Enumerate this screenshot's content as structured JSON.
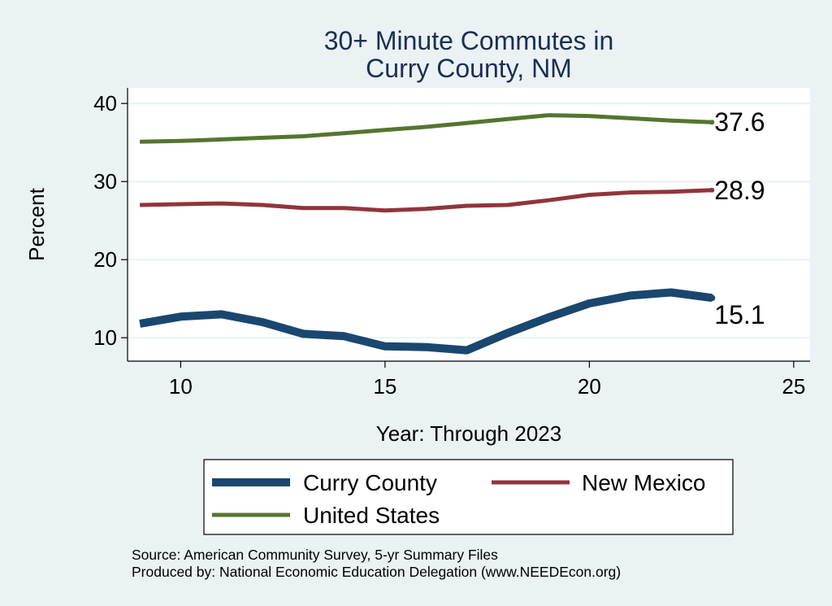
{
  "chart_data": {
    "type": "line",
    "title": [
      "30+ Minute Commutes in",
      "Curry County, NM"
    ],
    "xlabel": "Year: Through 2023",
    "ylabel": "Percent",
    "xlim": [
      8.7,
      25.4
    ],
    "ylim": [
      7,
      42
    ],
    "xticks": [
      10,
      15,
      20,
      25
    ],
    "yticks": [
      10,
      20,
      30,
      40
    ],
    "grid": true,
    "x": [
      9,
      10,
      11,
      12,
      13,
      14,
      15,
      16,
      17,
      18,
      19,
      20,
      21,
      22,
      23
    ],
    "series": [
      {
        "name": "Curry County",
        "color": "#1a476f",
        "values": [
          11.8,
          12.7,
          13.0,
          12.0,
          10.5,
          10.2,
          8.9,
          8.8,
          8.4,
          10.6,
          12.6,
          14.4,
          15.4,
          15.8,
          15.1
        ],
        "end_label": "15.1"
      },
      {
        "name": "New Mexico",
        "color": "#90353b",
        "values": [
          27.0,
          27.1,
          27.2,
          27.0,
          26.6,
          26.6,
          26.3,
          26.5,
          26.9,
          27.0,
          27.6,
          28.3,
          28.6,
          28.7,
          28.9
        ],
        "end_label": "28.9"
      },
      {
        "name": "United States",
        "color": "#55752f",
        "values": [
          35.1,
          35.2,
          35.4,
          35.6,
          35.8,
          36.2,
          36.6,
          37.0,
          37.5,
          38.0,
          38.5,
          38.4,
          38.1,
          37.8,
          37.6
        ],
        "end_label": "37.6"
      }
    ],
    "legend": [
      {
        "label": "Curry County",
        "series": 0
      },
      {
        "label": "New Mexico",
        "series": 1
      },
      {
        "label": "United States",
        "series": 2
      }
    ],
    "legend_position": "bottom"
  },
  "notes": [
    "Source: American Community Survey, 5-yr Summary Files",
    "Produced by: National Economic Education Delegation (www.NEEDEcon.org)"
  ]
}
